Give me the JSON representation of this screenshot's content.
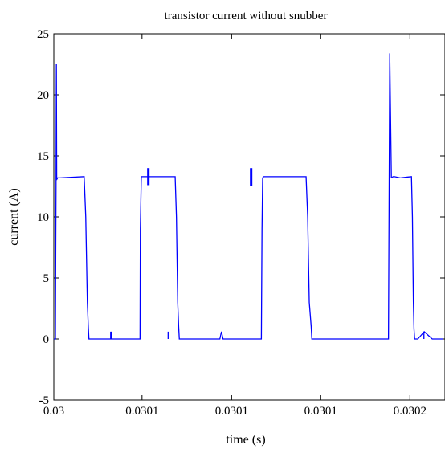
{
  "chart_data": {
    "type": "line",
    "title": "transistor current without snubber",
    "xlabel": "time (s)",
    "ylabel": "current (A)",
    "ylim": [
      -5,
      25
    ],
    "y_ticks": [
      "25",
      "20",
      "15",
      "10",
      "5",
      "0",
      "-5"
    ],
    "y_tick_values": [
      25,
      20,
      15,
      10,
      5,
      0,
      -5
    ],
    "x_ticks": [
      "0.03",
      "0.0301",
      "0.0301",
      "0.0301",
      "0.0302"
    ],
    "grid": false,
    "series": [
      {
        "color": "#0000ff",
        "x": [
          0.03,
          0.0300005,
          0.0300006,
          0.0300007,
          0.0300008,
          0.0300009,
          0.030001,
          0.0300012,
          0.0300019,
          0.0300095,
          0.03001,
          0.0300105,
          0.0300108,
          0.030011,
          0.030013,
          0.030018,
          0.030018,
          0.0300182,
          0.030021,
          0.030027,
          0.0300271,
          0.0300274,
          0.0300278,
          0.030031,
          0.030038,
          0.0300384,
          0.0300388,
          0.0300391,
          0.0300393,
          0.0300395,
          0.03004,
          0.0300408,
          0.030044,
          0.030052,
          0.0300525,
          0.030053,
          0.0300535,
          0.030054,
          0.030058,
          0.030065,
          0.0300652,
          0.0300654,
          0.0300657,
          0.030066,
          0.03007,
          0.030079,
          0.0300795,
          0.03008,
          0.0300806,
          0.0300808,
          0.030083,
          0.03009,
          0.0300905,
          0.030091,
          0.0300912,
          0.0300916,
          0.030092,
          0.030096,
          0.0301048,
          0.0301052,
          0.0301057,
          0.0301059,
          0.0301062,
          0.0301064,
          0.0301067,
          0.0301085,
          0.030112,
          0.0301123,
          0.0301126,
          0.0301128,
          0.030113,
          0.030114,
          0.030116,
          0.0301185,
          0.030122
        ],
        "y": [
          0,
          0,
          7,
          12.5,
          22.5,
          13.2,
          13.1,
          13.2,
          13.2,
          13.3,
          10,
          3,
          1,
          0,
          0,
          0,
          0.6,
          0,
          0,
          0,
          9,
          13.3,
          13.3,
          13.3,
          13.3,
          10,
          3,
          1,
          0,
          0,
          0,
          0,
          0,
          0,
          0.6,
          0,
          0,
          0,
          0,
          0,
          9,
          13.2,
          13.3,
          13.3,
          13.3,
          13.3,
          10,
          3,
          1,
          0,
          0,
          0,
          0,
          0,
          0,
          0,
          0,
          0,
          0,
          23.4,
          13.2,
          13.2,
          13.3,
          13.3,
          13.3,
          13.2,
          13.3,
          10,
          3,
          0.8,
          0,
          0,
          0.6,
          0,
          0
        ],
        "marks": [
          {
            "x": 0.0300178,
            "y0": 0,
            "y1": 0.6
          },
          {
            "x": 0.0300296,
            "y0": 12.6,
            "y1": 14.0
          },
          {
            "x": 0.0300358,
            "y0": 0,
            "y1": 0.6
          },
          {
            "x": 0.0300618,
            "y0": 12.5,
            "y1": 14.0
          },
          {
            "x": 0.0301159,
            "y0": 0,
            "y1": 0.6
          }
        ]
      }
    ]
  }
}
